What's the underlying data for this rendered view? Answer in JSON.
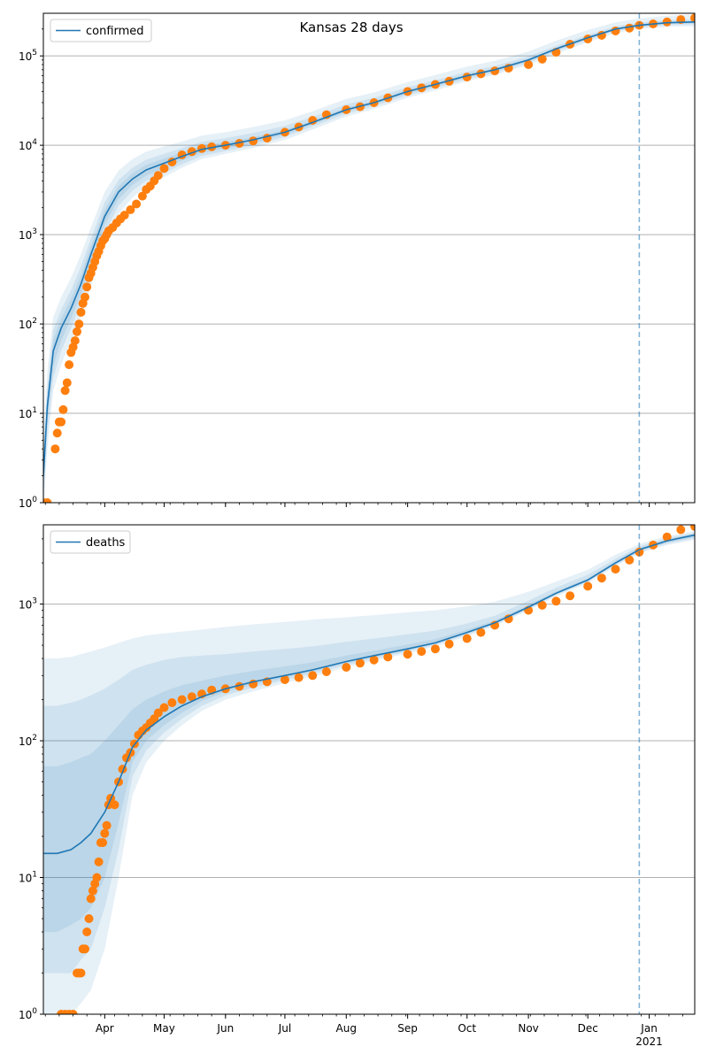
{
  "figure": {
    "title": "Kansas 28 days"
  },
  "chart_data": [
    {
      "type": "line",
      "panel": "top",
      "yscale": "log",
      "ylim": [
        1,
        300000
      ],
      "xlim": [
        "2020-03-01",
        "2021-01-24"
      ],
      "grid": "y",
      "legend": {
        "placement": "top-left",
        "entries": [
          "confirmed"
        ]
      },
      "vline": "2020-12-27",
      "yticks": [
        {
          "value": 1,
          "base": "10",
          "exp": "0"
        },
        {
          "value": 10,
          "base": "10",
          "exp": "1"
        },
        {
          "value": 100,
          "base": "10",
          "exp": "2"
        },
        {
          "value": 1000,
          "base": "10",
          "exp": "3"
        },
        {
          "value": 10000,
          "base": "10",
          "exp": "4"
        },
        {
          "value": 100000,
          "base": "10",
          "exp": "5"
        }
      ],
      "model": {
        "name": "confirmed",
        "color": "#1f77b4",
        "x": [
          "2020-03-01",
          "2020-03-03",
          "2020-03-06",
          "2020-03-10",
          "2020-03-15",
          "2020-03-20",
          "2020-03-25",
          "2020-04-01",
          "2020-04-08",
          "2020-04-15",
          "2020-04-22",
          "2020-05-01",
          "2020-05-10",
          "2020-05-20",
          "2020-06-01",
          "2020-06-15",
          "2020-07-01",
          "2020-07-15",
          "2020-08-01",
          "2020-08-15",
          "2020-09-01",
          "2020-09-15",
          "2020-10-01",
          "2020-10-15",
          "2020-11-01",
          "2020-11-15",
          "2020-12-01",
          "2020-12-15",
          "2020-12-27",
          "2021-01-10",
          "2021-01-24"
        ],
        "y": [
          2,
          12,
          50,
          90,
          150,
          280,
          600,
          1600,
          3000,
          4200,
          5300,
          6300,
          7500,
          9000,
          10000,
          11500,
          14000,
          18000,
          25000,
          30000,
          40000,
          48000,
          60000,
          70000,
          90000,
          120000,
          160000,
          200000,
          220000,
          235000,
          240000
        ]
      },
      "bands": [
        {
          "lower": [
            0.8,
            4,
            18,
            35,
            65,
            120,
            260,
            800,
            1700,
            2600,
            3500,
            4400,
            5600,
            7000,
            8000,
            9300,
            11500,
            15000,
            21000,
            25500,
            34000,
            41000,
            52000,
            61000,
            79000,
            106000,
            142000,
            180000,
            200000,
            212000,
            215000
          ],
          "upper": [
            5,
            30,
            120,
            200,
            330,
            600,
            1200,
            3000,
            5200,
            7000,
            8500,
            9700,
            11000,
            12800,
            14000,
            16000,
            19000,
            24000,
            33000,
            39000,
            51000,
            61000,
            76000,
            88000,
            112000,
            148000,
            195000,
            238000,
            262000,
            282000,
            290000
          ]
        },
        {
          "lower": [
            1,
            6,
            25,
            50,
            90,
            170,
            380,
            1050,
            2100,
            3100,
            4000,
            4900,
            6100,
            7600,
            8600,
            10000,
            12400,
            16200,
            22500,
            27300,
            36300,
            43800,
            55200,
            64800,
            83500,
            112000,
            150000,
            189000,
            208000,
            222000,
            226000
          ],
          "upper": [
            3.5,
            20,
            85,
            145,
            240,
            440,
            900,
            2300,
            4100,
            5600,
            6900,
            8000,
            9300,
            10900,
            12000,
            13700,
            16500,
            20800,
            28800,
            34000,
            44800,
            53300,
            66500,
            77000,
            98500,
            130000,
            172000,
            214000,
            236000,
            252000,
            258000
          ]
        },
        {
          "lower": [
            1.3,
            8,
            34,
            65,
            115,
            215,
            470,
            1300,
            2500,
            3600,
            4600,
            5550,
            6750,
            8250,
            9250,
            10700,
            13200,
            17100,
            23700,
            28700,
            38100,
            45800,
            57600,
            67400,
            86700,
            116000,
            155000,
            194000,
            214000,
            228000,
            232000
          ],
          "upper": [
            2.6,
            16,
            66,
            115,
            190,
            350,
            740,
            1900,
            3500,
            4850,
            6050,
            7100,
            8300,
            9800,
            10800,
            12300,
            14800,
            18900,
            26300,
            31300,
            41900,
            50200,
            62500,
            72600,
            93300,
            124000,
            165000,
            206000,
            226000,
            242000,
            247000
          ]
        }
      ],
      "observed": {
        "color": "#ff7f0e",
        "x": [
          "2020-03-01",
          "2020-03-03",
          "2020-03-07",
          "2020-03-08",
          "2020-03-09",
          "2020-03-10",
          "2020-03-11",
          "2020-03-12",
          "2020-03-13",
          "2020-03-14",
          "2020-03-15",
          "2020-03-16",
          "2020-03-17",
          "2020-03-18",
          "2020-03-19",
          "2020-03-20",
          "2020-03-21",
          "2020-03-22",
          "2020-03-23",
          "2020-03-24",
          "2020-03-25",
          "2020-03-26",
          "2020-03-27",
          "2020-03-28",
          "2020-03-29",
          "2020-03-30",
          "2020-03-31",
          "2020-04-01",
          "2020-04-02",
          "2020-04-03",
          "2020-04-05",
          "2020-04-07",
          "2020-04-09",
          "2020-04-11",
          "2020-04-14",
          "2020-04-17",
          "2020-04-20",
          "2020-04-22",
          "2020-04-24",
          "2020-04-26",
          "2020-04-28",
          "2020-05-01",
          "2020-05-05",
          "2020-05-10",
          "2020-05-15",
          "2020-05-20",
          "2020-05-25",
          "2020-06-01",
          "2020-06-08",
          "2020-06-15",
          "2020-06-22",
          "2020-07-01",
          "2020-07-08",
          "2020-07-15",
          "2020-07-22",
          "2020-08-01",
          "2020-08-08",
          "2020-08-15",
          "2020-08-22",
          "2020-09-01",
          "2020-09-08",
          "2020-09-15",
          "2020-09-22",
          "2020-10-01",
          "2020-10-08",
          "2020-10-15",
          "2020-10-22",
          "2020-11-01",
          "2020-11-08",
          "2020-11-15",
          "2020-11-22",
          "2020-12-01",
          "2020-12-08",
          "2020-12-15",
          "2020-12-22",
          "2020-12-27",
          "2021-01-03",
          "2021-01-10",
          "2021-01-17",
          "2021-01-24"
        ],
        "y": [
          1,
          1,
          4,
          6,
          8,
          8,
          11,
          18,
          22,
          35,
          48,
          55,
          65,
          82,
          100,
          135,
          170,
          200,
          260,
          330,
          370,
          430,
          500,
          580,
          650,
          750,
          850,
          900,
          1000,
          1100,
          1200,
          1350,
          1500,
          1650,
          1900,
          2200,
          2700,
          3200,
          3500,
          4000,
          4600,
          5500,
          6500,
          7800,
          8500,
          9200,
          9600,
          10000,
          10500,
          11200,
          12000,
          14000,
          16000,
          19000,
          22000,
          25000,
          27000,
          30000,
          34000,
          40000,
          44000,
          48000,
          52000,
          58000,
          63000,
          68000,
          73000,
          80000,
          92000,
          110000,
          135000,
          155000,
          170000,
          190000,
          205000,
          220000,
          228000,
          240000,
          255000,
          265000
        ]
      }
    },
    {
      "type": "line",
      "panel": "bottom",
      "yscale": "log",
      "ylim": [
        1,
        3800
      ],
      "xlim": [
        "2020-03-01",
        "2021-01-24"
      ],
      "grid": "y",
      "legend": {
        "placement": "top-left",
        "entries": [
          "deaths"
        ]
      },
      "vline": "2020-12-27",
      "xticks": [
        "Apr",
        "May",
        "Jun",
        "Jul",
        "Aug",
        "Sep",
        "Oct",
        "Nov",
        "Dec",
        "Jan"
      ],
      "xticks_sub": {
        "Jan": "2021"
      },
      "yticks": [
        {
          "value": 1,
          "base": "10",
          "exp": "0"
        },
        {
          "value": 10,
          "base": "10",
          "exp": "1"
        },
        {
          "value": 100,
          "base": "10",
          "exp": "2"
        },
        {
          "value": 1000,
          "base": "10",
          "exp": "3"
        }
      ],
      "model": {
        "name": "deaths",
        "color": "#1f77b4",
        "x": [
          "2020-03-01",
          "2020-03-08",
          "2020-03-15",
          "2020-03-20",
          "2020-03-25",
          "2020-04-01",
          "2020-04-08",
          "2020-04-15",
          "2020-04-22",
          "2020-05-01",
          "2020-05-10",
          "2020-05-20",
          "2020-06-01",
          "2020-06-15",
          "2020-07-01",
          "2020-07-15",
          "2020-08-01",
          "2020-08-15",
          "2020-09-01",
          "2020-09-15",
          "2020-10-01",
          "2020-10-15",
          "2020-11-01",
          "2020-11-15",
          "2020-12-01",
          "2020-12-15",
          "2020-12-27",
          "2021-01-10",
          "2021-01-24"
        ],
        "y": [
          15,
          15,
          16,
          18,
          21,
          30,
          50,
          90,
          120,
          150,
          180,
          210,
          240,
          270,
          300,
          330,
          380,
          420,
          470,
          520,
          620,
          730,
          950,
          1200,
          1500,
          2000,
          2500,
          2900,
          3200
        ]
      },
      "bands": [
        {
          "lower": [
            1,
            1,
            1,
            1.2,
            1.5,
            3,
            10,
            40,
            70,
            100,
            130,
            165,
            200,
            230,
            265,
            295,
            345,
            385,
            435,
            490,
            580,
            690,
            900,
            1140,
            1420,
            1890,
            2350,
            2700,
            2950
          ],
          "upper": [
            400,
            400,
            410,
            430,
            450,
            480,
            520,
            560,
            590,
            610,
            630,
            650,
            680,
            710,
            740,
            770,
            800,
            830,
            870,
            900,
            960,
            1040,
            1230,
            1460,
            1780,
            2300,
            2750,
            3150,
            3400
          ]
        },
        {
          "lower": [
            2,
            2,
            2,
            2.5,
            3,
            6,
            16,
            55,
            85,
            115,
            145,
            180,
            215,
            245,
            278,
            310,
            358,
            398,
            450,
            503,
            597,
            707,
            920,
            1165,
            1455,
            1935,
            2410,
            2770,
            3030
          ],
          "upper": [
            180,
            180,
            190,
            200,
            215,
            240,
            280,
            330,
            360,
            390,
            410,
            420,
            430,
            450,
            470,
            490,
            530,
            560,
            600,
            640,
            720,
            820,
            1060,
            1320,
            1640,
            2140,
            2640,
            3040,
            3320
          ]
        },
        {
          "lower": [
            4,
            4,
            4.5,
            5,
            6,
            10,
            25,
            70,
            100,
            130,
            160,
            195,
            228,
            258,
            289,
            320,
            369,
            409,
            460,
            512,
            608,
            719,
            935,
            1182,
            1477,
            1965,
            2450,
            2820,
            3090
          ],
          "upper": [
            65,
            65,
            70,
            75,
            80,
            100,
            130,
            170,
            200,
            230,
            255,
            275,
            300,
            325,
            350,
            375,
            420,
            455,
            505,
            555,
            650,
            760,
            985,
            1240,
            1545,
            2060,
            2570,
            2970,
            3270
          ]
        }
      ],
      "observed": {
        "color": "#ff7f0e",
        "x": [
          "2020-03-10",
          "2020-03-12",
          "2020-03-14",
          "2020-03-16",
          "2020-03-18",
          "2020-03-19",
          "2020-03-20",
          "2020-03-21",
          "2020-03-22",
          "2020-03-23",
          "2020-03-24",
          "2020-03-25",
          "2020-03-26",
          "2020-03-27",
          "2020-03-28",
          "2020-03-29",
          "2020-03-30",
          "2020-03-31",
          "2020-04-01",
          "2020-04-02",
          "2020-04-03",
          "2020-04-04",
          "2020-04-06",
          "2020-04-08",
          "2020-04-10",
          "2020-04-12",
          "2020-04-14",
          "2020-04-16",
          "2020-04-18",
          "2020-04-20",
          "2020-04-22",
          "2020-04-24",
          "2020-04-26",
          "2020-04-28",
          "2020-05-01",
          "2020-05-05",
          "2020-05-10",
          "2020-05-15",
          "2020-05-20",
          "2020-05-25",
          "2020-06-01",
          "2020-06-08",
          "2020-06-15",
          "2020-06-22",
          "2020-07-01",
          "2020-07-08",
          "2020-07-15",
          "2020-07-22",
          "2020-08-01",
          "2020-08-08",
          "2020-08-15",
          "2020-08-22",
          "2020-09-01",
          "2020-09-08",
          "2020-09-15",
          "2020-09-22",
          "2020-10-01",
          "2020-10-08",
          "2020-10-15",
          "2020-10-22",
          "2020-11-01",
          "2020-11-08",
          "2020-11-15",
          "2020-11-22",
          "2020-12-01",
          "2020-12-08",
          "2020-12-15",
          "2020-12-22",
          "2020-12-27",
          "2021-01-03",
          "2021-01-10",
          "2021-01-17",
          "2021-01-24"
        ],
        "y": [
          1,
          1,
          1,
          1,
          2,
          2,
          2,
          3,
          3,
          4,
          5,
          7,
          8,
          9,
          10,
          13,
          18,
          18,
          21,
          24,
          34,
          38,
          34,
          50,
          62,
          75,
          82,
          95,
          110,
          118,
          125,
          135,
          145,
          160,
          175,
          190,
          200,
          210,
          220,
          235,
          240,
          250,
          260,
          270,
          280,
          290,
          300,
          320,
          345,
          370,
          390,
          410,
          430,
          450,
          470,
          510,
          560,
          620,
          700,
          780,
          900,
          980,
          1050,
          1150,
          1350,
          1550,
          1800,
          2100,
          2400,
          2700,
          3100,
          3500,
          3700
        ]
      }
    }
  ]
}
